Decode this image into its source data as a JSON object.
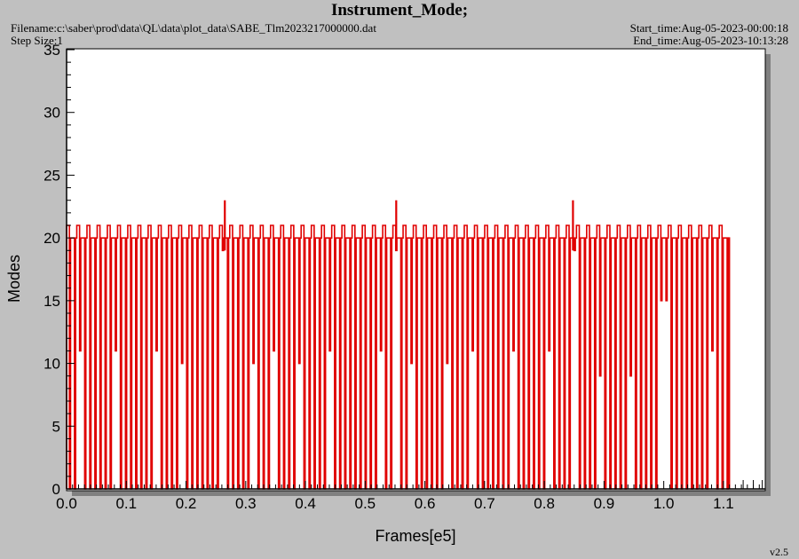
{
  "header": {
    "title": "Instrument_Mode;",
    "filename": "Filename:c:\\saber\\prod\\data\\QL\\data\\plot_data\\SABE_Tlm2023217000000.dat",
    "step_size": "Step Size:1",
    "start_time": "Start_time:Aug-05-2023-00:00:18",
    "end_time": "End_time:Aug-05-2023-10:13:28"
  },
  "footer": {
    "version": "v2.5"
  },
  "colors": {
    "series": "#e00000",
    "background": "#c0c0c0",
    "plot_area": "#ffffff",
    "shadow": "#808080"
  },
  "chart_data": {
    "type": "line",
    "title": "Instrument_Mode;",
    "xlabel": "Frames[e5]",
    "ylabel": "Modes",
    "xlim": [
      0.0,
      1.17
    ],
    "ylim": [
      0,
      35
    ],
    "xticks": [
      "0.0",
      "0.1",
      "0.2",
      "0.3",
      "0.4",
      "0.5",
      "0.6",
      "0.7",
      "0.8",
      "0.9",
      "1.0",
      "1.1"
    ],
    "yticks": [
      "0",
      "5",
      "10",
      "15",
      "20",
      "25",
      "30",
      "35"
    ],
    "grid": false,
    "series": [
      {
        "description": "Instrument mode oscillating between ~20-21 and 0 at regular intervals",
        "x_start": 0.0,
        "x_end": 1.11,
        "baseline_level": 20,
        "high_level": 21,
        "low_level": 0,
        "drop_count": 130,
        "partial_drops": [
          [
            0.02,
            11
          ],
          [
            0.083,
            11
          ],
          [
            0.148,
            11
          ],
          [
            0.192,
            10
          ],
          [
            0.265,
            19
          ],
          [
            0.31,
            10
          ],
          [
            0.345,
            11
          ],
          [
            0.392,
            10
          ],
          [
            0.44,
            11
          ],
          [
            0.525,
            11
          ],
          [
            0.552,
            19
          ],
          [
            0.58,
            10
          ],
          [
            0.637,
            10
          ],
          [
            0.68,
            11
          ],
          [
            0.748,
            11
          ],
          [
            0.805,
            11
          ],
          [
            0.848,
            19
          ],
          [
            0.893,
            9
          ],
          [
            0.948,
            9
          ],
          [
            1.0,
            15
          ],
          [
            1.078,
            11
          ]
        ],
        "peaks": [
          [
            0.265,
            23
          ],
          [
            0.552,
            23
          ],
          [
            0.848,
            23
          ]
        ]
      }
    ],
    "trailing_markers": [
      1.133,
      1.15,
      1.165
    ]
  }
}
